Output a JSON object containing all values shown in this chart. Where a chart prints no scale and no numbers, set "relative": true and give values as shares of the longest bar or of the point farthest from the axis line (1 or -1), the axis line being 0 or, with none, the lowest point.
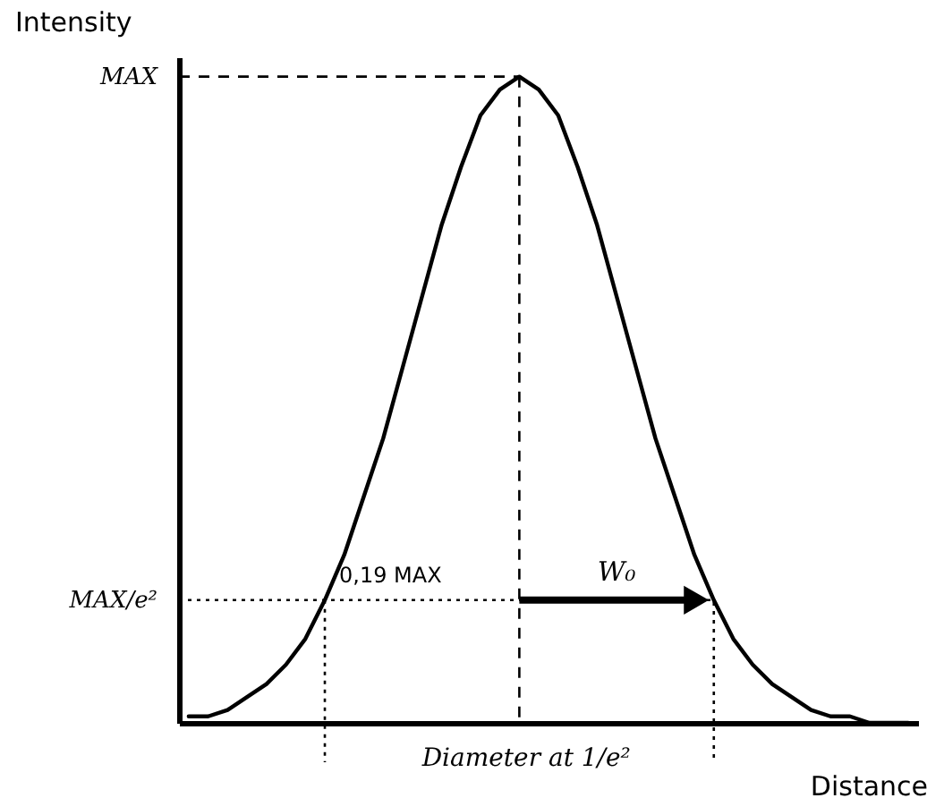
{
  "chart_data": {
    "type": "line",
    "xlabel": "Distance",
    "ylabel": "Intensity",
    "relative": true,
    "categories": [
      null,
      null,
      null,
      null,
      null,
      null,
      null,
      null,
      null,
      null,
      null,
      null,
      null,
      null,
      null,
      null,
      null,
      null,
      null,
      null,
      null,
      null,
      null,
      null,
      null,
      null,
      null,
      null,
      null,
      null,
      null,
      null,
      null,
      null,
      null,
      null,
      null,
      null
    ],
    "series": [
      {
        "color": "#000000",
        "values": [
          0.01,
          0.01,
          0.02,
          0.04,
          0.06,
          0.09,
          0.13,
          0.19,
          0.26,
          0.35,
          0.44,
          0.55,
          0.66,
          0.77,
          0.86,
          0.94,
          0.98,
          1,
          0.98,
          0.94,
          0.86,
          0.77,
          0.66,
          0.55,
          0.44,
          0.35,
          0.26,
          0.19,
          0.13,
          0.09,
          0.06,
          0.04,
          0.02,
          0.01,
          0.01,
          0.0,
          0.0,
          0.0
        ]
      }
    ],
    "tick_labels": false,
    "ref_lines": [
      {
        "axis": "y",
        "value": 1,
        "line_style": "dashed",
        "color": "#000000"
      },
      {
        "axis": "y",
        "value": 0.19,
        "line_style": "dotted",
        "color": "#000000"
      }
    ],
    "annotations": [
      "MAX",
      "MAX/e²",
      "0,19 MAX",
      "W₀",
      "Diameter at 1/e²"
    ]
  }
}
